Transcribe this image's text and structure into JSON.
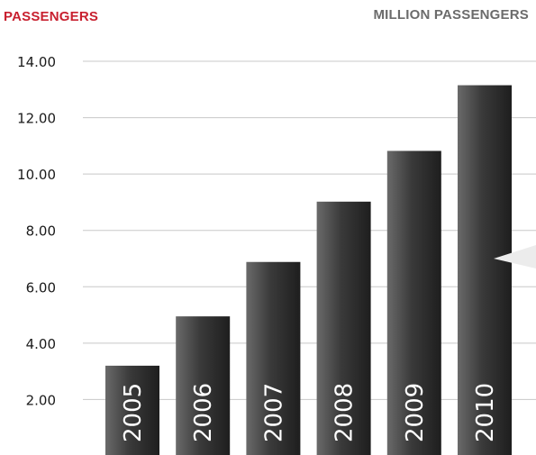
{
  "header": {
    "left_title": "PASSENGERS",
    "right_title": "MILLION PASSENGERS"
  },
  "colors": {
    "accent": "#c8202f",
    "unit_label": "#6b6b6b",
    "bar_light": "#6a6a6a",
    "bar_dark": "#1e1e1e",
    "grid": "#c8c8c8"
  },
  "chart_data": {
    "type": "bar",
    "title": "PASSENGERS",
    "ylabel": "MILLION PASSENGERS",
    "categories": [
      "2005",
      "2006",
      "2007",
      "2008",
      "2009",
      "2010"
    ],
    "values": [
      3.2,
      4.95,
      6.88,
      9.02,
      10.82,
      13.15
    ],
    "ylim": [
      0,
      14
    ],
    "yticks": [
      "2.00",
      "4.00",
      "6.00",
      "8.00",
      "10.00",
      "12.00",
      "14.00"
    ],
    "grid": true,
    "labels_inside_bars": true
  }
}
